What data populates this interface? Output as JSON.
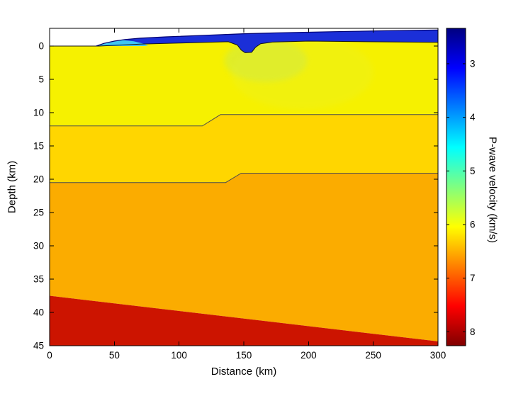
{
  "figure": {
    "background": "#ffffff",
    "xlabel": "Distance (km)",
    "ylabel": "Depth (km)",
    "colorbar_label": "P-wave velocity (km/s)"
  },
  "chart_data": {
    "type": "area",
    "description": "2-D seismic P-wave velocity model cross-section (jet colormap), depth positive downward",
    "title": "",
    "xlabel": "Distance (km)",
    "ylabel": "Depth (km)",
    "xlim": [
      0,
      300
    ],
    "ylim": [
      -2.66,
      45
    ],
    "y_axis_inverted_depth": true,
    "x_ticks": [
      0,
      50,
      100,
      150,
      200,
      250,
      300
    ],
    "y_ticks": [
      0,
      5,
      10,
      15,
      20,
      25,
      30,
      35,
      40,
      45
    ],
    "colormap": "jet",
    "colorbar": {
      "label": "P-wave velocity (km/s)",
      "ticks": [
        3,
        4,
        5,
        6,
        7,
        8
      ],
      "range": [
        2.34,
        8.26
      ],
      "gradient": [
        [
          0,
          "#000080"
        ],
        [
          0.125,
          "#0000ff"
        ],
        [
          0.375,
          "#00ffff"
        ],
        [
          0.625,
          "#ffff00"
        ],
        [
          0.875,
          "#ff0000"
        ],
        [
          1,
          "#800000"
        ]
      ]
    },
    "layers": [
      {
        "id": "upper-crust",
        "velocity_kms": "5.8-6.1",
        "color": "#f6f100",
        "polygon": [
          [
            0,
            0
          ],
          [
            38,
            0
          ],
          [
            55,
            -0.15
          ],
          [
            70,
            -0.3
          ],
          [
            100,
            -0.45
          ],
          [
            138,
            -0.65
          ],
          [
            145,
            -0.15
          ],
          [
            148,
            0.6
          ],
          [
            151,
            1.0
          ],
          [
            156,
            0.95
          ],
          [
            159,
            0.2
          ],
          [
            163,
            -0.35
          ],
          [
            172,
            -0.6
          ],
          [
            200,
            -0.75
          ],
          [
            245,
            -0.65
          ],
          [
            300,
            -0.55
          ],
          [
            300,
            10.3
          ],
          [
            132,
            10.3
          ],
          [
            118,
            12
          ],
          [
            0,
            12
          ]
        ]
      },
      {
        "id": "middle-crust",
        "velocity_kms": "6.3-6.5",
        "color": "#ffd600",
        "polygon": [
          [
            0,
            12
          ],
          [
            118,
            12
          ],
          [
            132,
            10.3
          ],
          [
            300,
            10.3
          ],
          [
            300,
            19.1
          ],
          [
            148,
            19.1
          ],
          [
            136,
            20.5
          ],
          [
            0,
            20.5
          ]
        ]
      },
      {
        "id": "lower-crust",
        "velocity_kms": "6.7-6.9",
        "color": "#fbac00",
        "polygon": [
          [
            0,
            20.5
          ],
          [
            136,
            20.5
          ],
          [
            148,
            19.1
          ],
          [
            300,
            19.1
          ],
          [
            300,
            44.35
          ],
          [
            0,
            37.5
          ]
        ]
      },
      {
        "id": "upper-mantle",
        "velocity_kms": "7.9-8.1",
        "color": "#cc1400",
        "polygon": [
          [
            0,
            37.5
          ],
          [
            300,
            44.35
          ],
          [
            300,
            45
          ],
          [
            0,
            45
          ]
        ]
      }
    ],
    "patches": [
      {
        "id": "low-velocity-zone",
        "cx": 167,
        "cy": 2.2,
        "rx": 32,
        "ry": 3.2,
        "color": "#c9e94f",
        "opacity": 0.5
      },
      {
        "id": "low-velocity-halo",
        "cx": 195,
        "cy": 4.0,
        "rx": 55,
        "ry": 5.5,
        "color": "#e4f13c",
        "opacity": 0.22
      }
    ],
    "overlays": [
      {
        "id": "seawater",
        "velocity_kms": "low (colormap minimum, blue)",
        "color": "#1b2fd8",
        "polygon": [
          [
            36,
            0
          ],
          [
            42,
            -0.4
          ],
          [
            50,
            -0.75
          ],
          [
            58,
            -0.98
          ],
          [
            70,
            -1.18
          ],
          [
            90,
            -1.38
          ],
          [
            120,
            -1.62
          ],
          [
            150,
            -1.85
          ],
          [
            180,
            -2.0
          ],
          [
            220,
            -2.16
          ],
          [
            260,
            -2.3
          ],
          [
            300,
            -2.42
          ],
          [
            300,
            -0.55
          ],
          [
            245,
            -0.65
          ],
          [
            200,
            -0.75
          ],
          [
            172,
            -0.6
          ],
          [
            163,
            -0.35
          ],
          [
            159,
            0.2
          ],
          [
            156,
            0.95
          ],
          [
            151,
            1.0
          ],
          [
            148,
            0.6
          ],
          [
            145,
            -0.15
          ],
          [
            138,
            -0.65
          ],
          [
            100,
            -0.45
          ],
          [
            70,
            -0.3
          ],
          [
            55,
            -0.15
          ],
          [
            38,
            0
          ]
        ]
      },
      {
        "id": "sediment-lens",
        "velocity_kms": "4.0-4.5",
        "color": "#3fc6f3",
        "polygon": [
          [
            37,
            -0.02
          ],
          [
            43,
            -0.42
          ],
          [
            50,
            -0.72
          ],
          [
            57,
            -0.88
          ],
          [
            65,
            -0.72
          ],
          [
            72,
            -0.38
          ],
          [
            76,
            -0.06
          ],
          [
            73,
            0
          ],
          [
            40,
            0
          ]
        ]
      }
    ],
    "boundaries": [
      {
        "id": "basement-top",
        "color": "#151515",
        "width": 1,
        "points": [
          [
            0,
            0
          ],
          [
            38,
            0
          ],
          [
            55,
            -0.15
          ],
          [
            70,
            -0.3
          ],
          [
            100,
            -0.45
          ],
          [
            138,
            -0.65
          ],
          [
            145,
            -0.15
          ],
          [
            148,
            0.6
          ],
          [
            151,
            1.0
          ],
          [
            156,
            0.95
          ],
          [
            159,
            0.2
          ],
          [
            163,
            -0.35
          ],
          [
            172,
            -0.6
          ],
          [
            200,
            -0.75
          ],
          [
            245,
            -0.65
          ],
          [
            300,
            -0.55
          ]
        ]
      },
      {
        "id": "sea-surface",
        "color": "#000070",
        "width": 1.2,
        "points": [
          [
            36,
            0
          ],
          [
            42,
            -0.4
          ],
          [
            50,
            -0.75
          ],
          [
            58,
            -0.98
          ],
          [
            70,
            -1.18
          ],
          [
            90,
            -1.38
          ],
          [
            120,
            -1.62
          ],
          [
            150,
            -1.85
          ],
          [
            180,
            -2.0
          ],
          [
            220,
            -2.16
          ],
          [
            260,
            -2.3
          ],
          [
            300,
            -2.42
          ]
        ]
      },
      {
        "id": "midcrust-boundary-1",
        "color": "#4d4d4d",
        "width": 1,
        "points": [
          [
            0,
            12
          ],
          [
            118,
            12
          ],
          [
            132,
            10.3
          ],
          [
            300,
            10.3
          ]
        ]
      },
      {
        "id": "midcrust-boundary-2",
        "color": "#4d4d4d",
        "width": 1,
        "points": [
          [
            0,
            20.5
          ],
          [
            136,
            20.5
          ],
          [
            148,
            19.1
          ],
          [
            300,
            19.1
          ]
        ]
      }
    ]
  }
}
